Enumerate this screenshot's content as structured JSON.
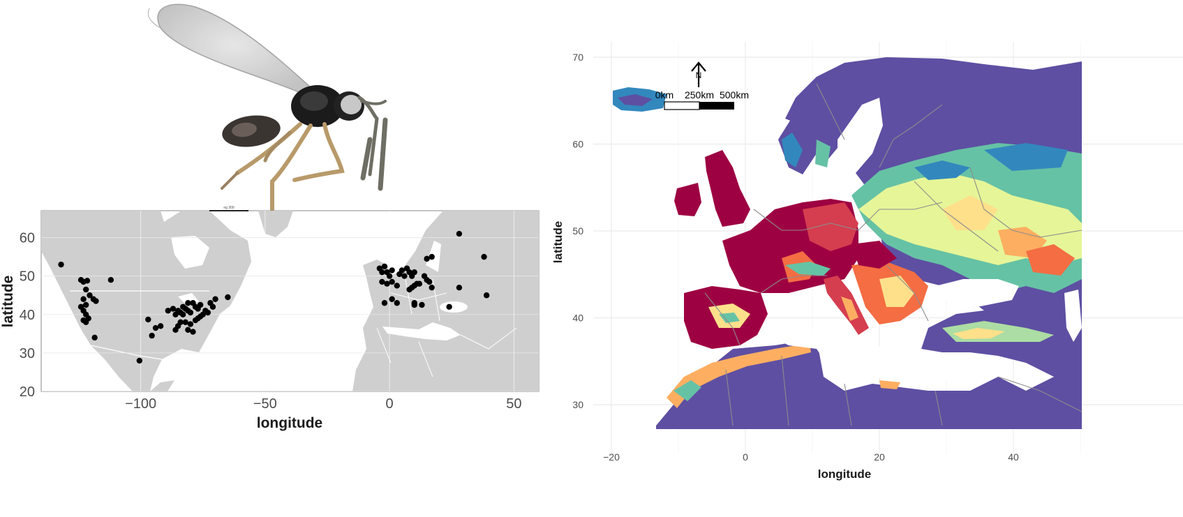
{
  "left_map": {
    "xlabel": "longitude",
    "ylabel": "latitude",
    "xlim": [
      -140,
      60
    ],
    "ylim": [
      20,
      67
    ],
    "x_ticks": [
      -100,
      -50,
      0,
      50
    ],
    "y_ticks": [
      20,
      30,
      40,
      50,
      60
    ],
    "x_tick_labels": [
      "−100",
      "−50",
      "0",
      "50"
    ],
    "y_tick_labels": [
      "20",
      "30",
      "40",
      "50",
      "60"
    ],
    "colors": {
      "land": "#cfcfcf",
      "ocean": "#ffffff",
      "points": "#000000"
    },
    "points": [
      [
        -132,
        53
      ],
      [
        -124,
        49
      ],
      [
        -123,
        48.5
      ],
      [
        -121.5,
        48.8
      ],
      [
        -120.5,
        45
      ],
      [
        -122,
        46.5
      ],
      [
        -123,
        44
      ],
      [
        -122,
        42.5
      ],
      [
        -124,
        42
      ],
      [
        -123,
        41
      ],
      [
        -122,
        40
      ],
      [
        -121,
        39
      ],
      [
        -123,
        38.5
      ],
      [
        -122,
        38
      ],
      [
        -118.5,
        34
      ],
      [
        -112,
        49
      ],
      [
        -119,
        44
      ],
      [
        -118,
        43.5
      ],
      [
        -100.5,
        28
      ],
      [
        -97,
        38.7
      ],
      [
        -95.5,
        34.5
      ],
      [
        -94,
        36.5
      ],
      [
        -92,
        37
      ],
      [
        -89,
        41
      ],
      [
        -86,
        40
      ],
      [
        -85,
        41
      ],
      [
        -84,
        40.5
      ],
      [
        -83,
        42
      ],
      [
        -82,
        41.5
      ],
      [
        -81,
        41
      ],
      [
        -80,
        40.5
      ],
      [
        -79,
        43
      ],
      [
        -78,
        42
      ],
      [
        -77,
        41.5
      ],
      [
        -76,
        42.5
      ],
      [
        -75,
        40
      ],
      [
        -74,
        41
      ],
      [
        -73,
        40.5
      ],
      [
        -72,
        43
      ],
      [
        -71,
        42
      ],
      [
        -70,
        44
      ],
      [
        -78,
        38.5
      ],
      [
        -80,
        37.5
      ],
      [
        -82,
        38
      ],
      [
        -84,
        38
      ],
      [
        -85,
        37
      ],
      [
        -86,
        36
      ],
      [
        -81,
        36
      ],
      [
        -79,
        35.5
      ],
      [
        -77,
        39
      ],
      [
        -83,
        40
      ],
      [
        -76,
        39.5
      ],
      [
        -81,
        43
      ],
      [
        -87,
        41.5
      ],
      [
        -65,
        44.5
      ],
      [
        -4,
        52
      ],
      [
        -3,
        51
      ],
      [
        -2,
        52.5
      ],
      [
        -1,
        51
      ],
      [
        0,
        50
      ],
      [
        1,
        51.5
      ],
      [
        -3,
        48.5
      ],
      [
        -1,
        48
      ],
      [
        1,
        48.5
      ],
      [
        3,
        47.5
      ],
      [
        4,
        50.5
      ],
      [
        5,
        51.5
      ],
      [
        6,
        50
      ],
      [
        7,
        52
      ],
      [
        8,
        51
      ],
      [
        9,
        50
      ],
      [
        10,
        51
      ],
      [
        11,
        48
      ],
      [
        9,
        47
      ],
      [
        8,
        46.5
      ],
      [
        10,
        47.5
      ],
      [
        12,
        48
      ],
      [
        14,
        50
      ],
      [
        15,
        49
      ],
      [
        16,
        48.5
      ],
      [
        -2,
        43
      ],
      [
        1,
        44
      ],
      [
        3,
        43
      ],
      [
        10,
        43
      ],
      [
        10,
        42.5
      ],
      [
        13,
        42.5
      ],
      [
        17,
        47
      ],
      [
        15,
        54.5
      ],
      [
        17,
        55
      ],
      [
        24,
        42
      ],
      [
        28,
        47
      ],
      [
        28,
        61
      ],
      [
        38,
        55
      ],
      [
        39,
        45
      ]
    ]
  },
  "right_map": {
    "xlabel": "longitude",
    "ylabel": "latitude",
    "xlim": [
      -21,
      50
    ],
    "ylim": [
      26.5,
      71
    ],
    "x_ticks": [
      -20,
      0,
      20,
      40
    ],
    "y_ticks": [
      30,
      40,
      50,
      60,
      70
    ],
    "x_tick_labels": [
      "−20",
      "0",
      "20",
      "40"
    ],
    "y_tick_labels": [
      "30",
      "40",
      "50",
      "60",
      "70"
    ],
    "scale_bar_labels": [
      "0km",
      "250km",
      "500km"
    ],
    "north_arrow_label": "N",
    "palette": [
      "#5e4fa2",
      "#3288bd",
      "#66c2a5",
      "#abdda4",
      "#e6f598",
      "#fee08b",
      "#fdae61",
      "#f46d43",
      "#d53e4f",
      "#9e0142"
    ]
  },
  "insect_photo": {
    "scale_bar_caption": "ng 300"
  }
}
